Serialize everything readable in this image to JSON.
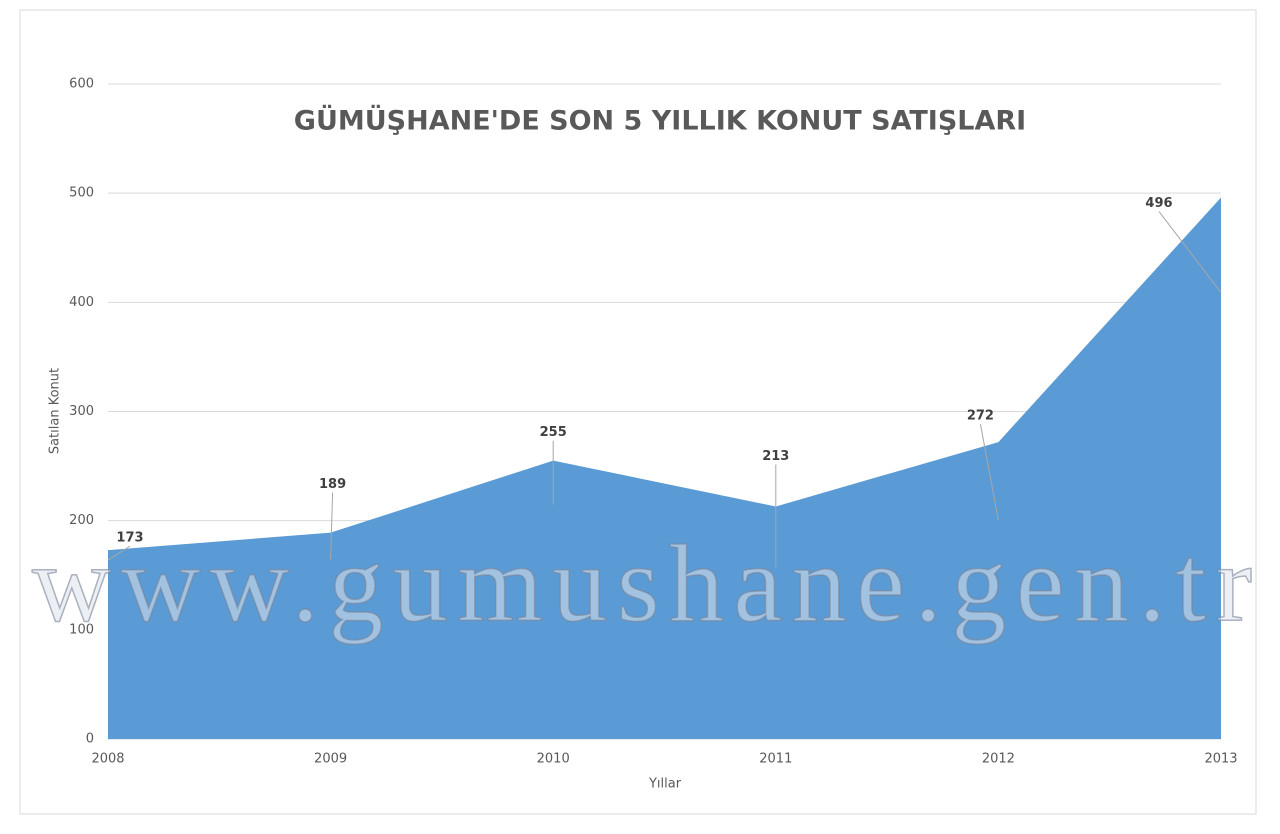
{
  "chart_data": {
    "type": "area",
    "title": "GÜMÜŞHANE'DE SON 5 YILLIK KONUT SATIŞLARI",
    "x_label": "Yıllar",
    "y_label": "Satılan Konut",
    "categories": [
      "2008",
      "2009",
      "2010",
      "2011",
      "2012",
      "2013"
    ],
    "values": [
      173,
      189,
      255,
      213,
      272,
      496
    ],
    "color": "#5b9bd5",
    "ylim": [
      0,
      600
    ],
    "yticks": [
      0,
      100,
      200,
      300,
      400,
      500,
      600
    ],
    "grid": true,
    "watermark": "www.gumushane.gen.tr"
  }
}
